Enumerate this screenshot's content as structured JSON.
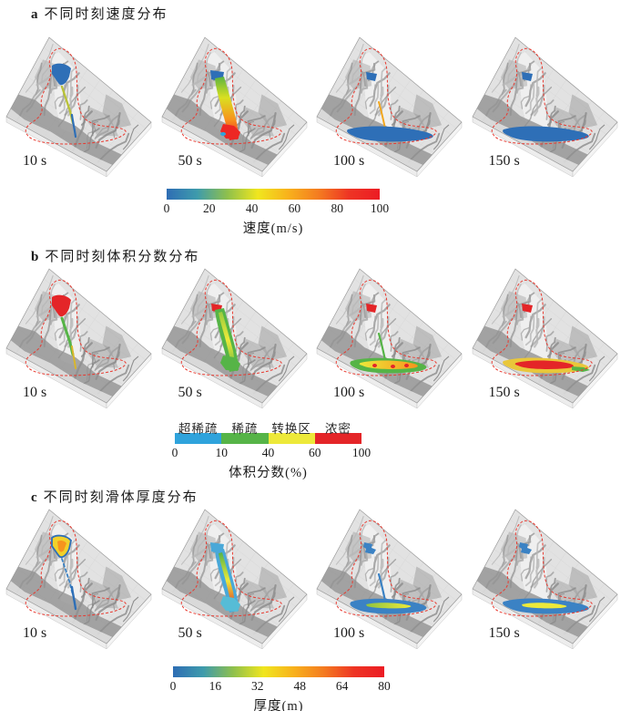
{
  "figure": {
    "terrain": {
      "surface": "#e2e2e2",
      "face_left": "#ededed",
      "face_right": "#f4f4f4",
      "valley_shadow": "#8f8f8f",
      "boundary_color": "#e8392f"
    },
    "panels": [
      {
        "id": "a",
        "label": "a",
        "title": "不同时刻速度分布",
        "colorbar": {
          "type": "gradient",
          "stops": [
            "#2e6db4",
            "#3e9bac",
            "#8fc04c",
            "#f0e61e",
            "#f8b11c",
            "#f47b20",
            "#ee3424",
            "#ec1c24"
          ],
          "ticks": [
            "0",
            "20",
            "40",
            "60",
            "80",
            "100"
          ],
          "unit": "速度(m/s)"
        },
        "cells": [
          {
            "time": "10 s",
            "features": [
              {
                "shape": "srcBig",
                "fill": "#2e6fb7"
              },
              {
                "shape": "chanThin",
                "stroke": "#b9c23a",
                "width": 2.4
              },
              {
                "shape": "chanLow",
                "stroke": "#2e6fb7",
                "width": 2.2
              }
            ]
          },
          {
            "time": "50 s",
            "features": [
              {
                "shape": "srcSmall",
                "fill": "#2e6fb7"
              },
              {
                "shape": "chanBand",
                "grad": [
                  "#5bb441",
                  "#d9e021",
                  "#f7941d",
                  "#ed1c24"
                ],
                "dir": "v"
              },
              {
                "shape": "fan",
                "fill": "#ed2724"
              },
              {
                "shape": "mouthDot",
                "fill": "#2fa3dc"
              }
            ]
          },
          {
            "time": "100 s",
            "features": [
              {
                "shape": "srcTiny",
                "fill": "#2e6fb7"
              },
              {
                "shape": "chanMid",
                "stroke": "#f2a71f",
                "width": 2
              },
              {
                "shape": "fanSm",
                "fill": "#f7941d"
              },
              {
                "shape": "runoutLong",
                "fill": "#2e6fb7"
              }
            ]
          },
          {
            "time": "150 s",
            "features": [
              {
                "shape": "srcTiny",
                "fill": "#2e6fb7"
              },
              {
                "shape": "runoutLong",
                "fill": "#2e6fb7"
              }
            ]
          }
        ]
      },
      {
        "id": "b",
        "label": "b",
        "title": "不同时刻体积分数分布",
        "colorbar": {
          "type": "segments",
          "segments": [
            {
              "label": "超稀疏",
              "color": "#2fa3dc"
            },
            {
              "label": "稀疏",
              "color": "#56b447"
            },
            {
              "label": "转换区",
              "color": "#ede93a"
            },
            {
              "label": "浓密",
              "color": "#e42528"
            }
          ],
          "ticks": [
            "0",
            "10",
            "40",
            "60",
            "100"
          ],
          "unit": "体积分数(%)"
        },
        "cells": [
          {
            "time": "10 s",
            "features": [
              {
                "shape": "srcBig",
                "fill": "#e42528"
              },
              {
                "shape": "chanThin",
                "stroke": "#56b447",
                "width": 3
              },
              {
                "shape": "chanLow",
                "stroke": "#d9b62c",
                "width": 2
              }
            ]
          },
          {
            "time": "50 s",
            "features": [
              {
                "shape": "srcTiny",
                "fill": "#e42528"
              },
              {
                "shape": "chanBand",
                "fill": "#56b447"
              },
              {
                "shape": "chanInner",
                "grad": [
                  "#9bcb3e",
                  "#ede93a",
                  "#6fbc42"
                ],
                "dir": "v"
              },
              {
                "shape": "fan",
                "fill": "#56b447"
              }
            ]
          },
          {
            "time": "100 s",
            "features": [
              {
                "shape": "srcTiny",
                "fill": "#e42528"
              },
              {
                "shape": "chanMid",
                "stroke": "#56b447",
                "width": 2.2
              },
              {
                "shape": "runout",
                "fill": "#56b447"
              },
              {
                "shape": "runoutCore",
                "grad": [
                  "#ede93a",
                  "#f7941d"
                ],
                "dir": "h"
              },
              {
                "shape": "coreDots",
                "fill": "#e42528"
              }
            ]
          },
          {
            "time": "150 s",
            "features": [
              {
                "shape": "srcTiny",
                "fill": "#e42528"
              },
              {
                "shape": "runoutLong",
                "fill": "#e9c73a"
              },
              {
                "shape": "runoutCore",
                "fill": "#e42528"
              },
              {
                "shape": "tailGreen",
                "fill": "#56b447"
              }
            ]
          }
        ]
      },
      {
        "id": "c",
        "label": "c",
        "title": "不同时刻滑体厚度分布",
        "colorbar": {
          "type": "gradient",
          "stops": [
            "#2e6db4",
            "#3e9bac",
            "#8fc04c",
            "#f0e61e",
            "#f8b11c",
            "#f47b20",
            "#ee3424",
            "#ec1c24"
          ],
          "ticks": [
            "0",
            "16",
            "32",
            "48",
            "64",
            "80"
          ],
          "unit": "厚度(m)"
        },
        "cells": [
          {
            "time": "10 s",
            "features": [
              {
                "shape": "srcBig",
                "fill": "#f2d12a",
                "stroke": "#2e6fb7",
                "width": 1.8
              },
              {
                "shape": "srcCore",
                "fill": "#f7941d"
              },
              {
                "shape": "chanThin",
                "stroke": "#3b82c4",
                "width": 1.8,
                "dash": "3 3"
              },
              {
                "shape": "chanLow",
                "stroke": "#2e6fb7",
                "width": 2.4
              }
            ]
          },
          {
            "time": "50 s",
            "features": [
              {
                "shape": "srcSmall",
                "fill": "#49a8d8"
              },
              {
                "shape": "chanBand",
                "fill": "#49a8d8"
              },
              {
                "shape": "chanInner",
                "grad": [
                  "#56b447",
                  "#ede93a",
                  "#d92b27"
                ],
                "dir": "v"
              },
              {
                "shape": "fan",
                "fill": "#56bcd6"
              }
            ]
          },
          {
            "time": "100 s",
            "features": [
              {
                "shape": "srcClump",
                "fill": "#3b82c4"
              },
              {
                "shape": "chanMid",
                "stroke": "#3b82c4",
                "width": 2.2
              },
              {
                "shape": "runout",
                "fill": "#3b82c4"
              },
              {
                "shape": "runoutCoreSm",
                "grad": [
                  "#8fc43f",
                  "#ede93a"
                ],
                "dir": "h"
              }
            ]
          },
          {
            "time": "150 s",
            "features": [
              {
                "shape": "srcClump",
                "fill": "#3b82c4"
              },
              {
                "shape": "runoutLong",
                "fill": "#3b82c4"
              },
              {
                "shape": "runoutCoreSm",
                "fill": "#ede93a"
              }
            ]
          }
        ]
      }
    ]
  },
  "chart_data": [
    {
      "type": "heatmap",
      "panel": "a",
      "title": "不同时刻速度分布",
      "legend": "colorbar",
      "scale": "continuous",
      "range": [
        0,
        100
      ],
      "ticks": [
        0,
        20,
        40,
        60,
        80,
        100
      ],
      "unit": "速度(m/s)",
      "times_s": [
        10,
        50,
        100,
        150
      ]
    },
    {
      "type": "heatmap",
      "panel": "b",
      "title": "不同时刻体积分数分布",
      "legend": "colorbar",
      "scale": "discrete",
      "ticks": [
        0,
        10,
        40,
        60,
        100
      ],
      "unit": "体积分数(%)",
      "times_s": [
        10,
        50,
        100,
        150
      ],
      "classes": [
        {
          "label": "超稀疏",
          "range": [
            0,
            10
          ],
          "color": "#2fa3dc"
        },
        {
          "label": "稀疏",
          "range": [
            10,
            40
          ],
          "color": "#56b447"
        },
        {
          "label": "转换区",
          "range": [
            40,
            60
          ],
          "color": "#ede93a"
        },
        {
          "label": "浓密",
          "range": [
            60,
            100
          ],
          "color": "#e42528"
        }
      ]
    },
    {
      "type": "heatmap",
      "panel": "c",
      "title": "不同时刻滑体厚度分布",
      "legend": "colorbar",
      "scale": "continuous",
      "range": [
        0,
        80
      ],
      "ticks": [
        0,
        16,
        32,
        48,
        64,
        80
      ],
      "unit": "厚度(m)",
      "times_s": [
        10,
        50,
        100,
        150
      ]
    }
  ]
}
